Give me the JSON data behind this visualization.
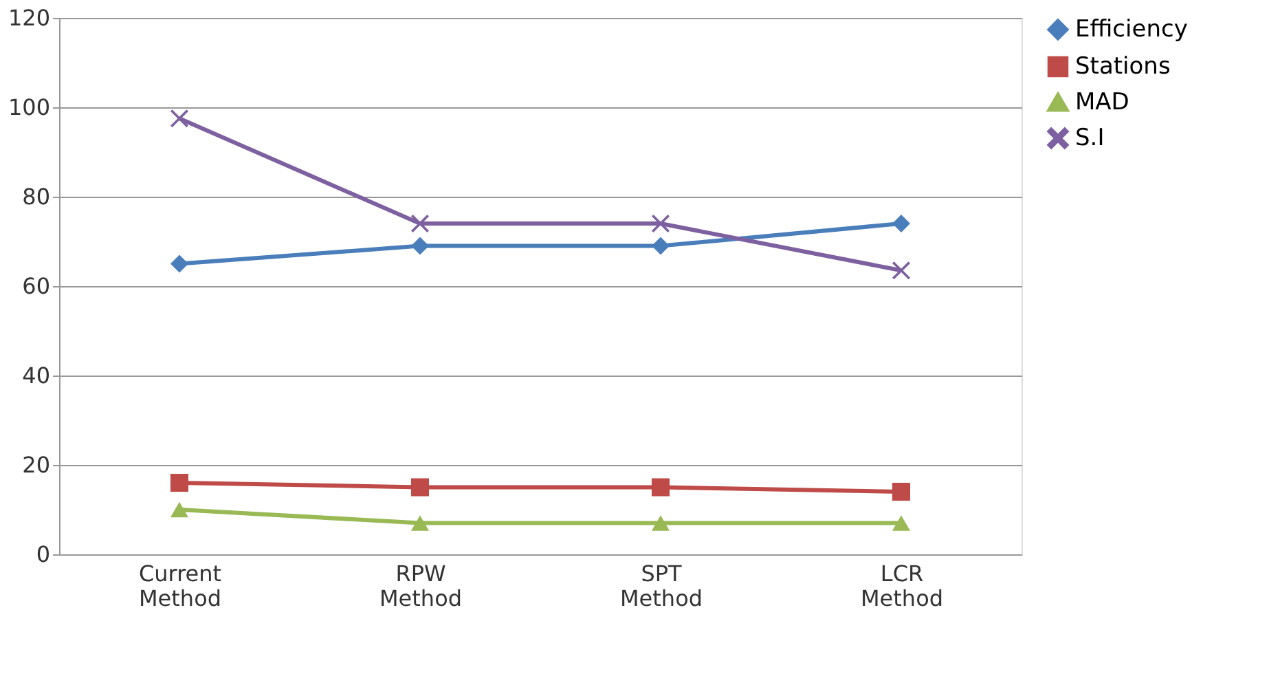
{
  "chart_data": {
    "type": "line",
    "categories": [
      "Current Method",
      "RPW Method",
      "SPT Method",
      "LCR Method"
    ],
    "series": [
      {
        "name": "Efficiency",
        "color": "#4a7ebb",
        "marker": "diamond",
        "values": [
          65,
          69,
          69,
          74
        ]
      },
      {
        "name": "Stations",
        "color": "#be4b48",
        "marker": "square",
        "values": [
          16,
          15,
          15,
          14
        ]
      },
      {
        "name": "MAD",
        "color": "#98b954",
        "marker": "triangle",
        "values": [
          10,
          7,
          7,
          7
        ]
      },
      {
        "name": "S.I",
        "color": "#7d60a0",
        "marker": "cross",
        "values": [
          97.5,
          74,
          74,
          63.5
        ]
      }
    ],
    "ylim": [
      0,
      120
    ],
    "yticks": [
      0,
      20,
      40,
      60,
      80,
      100,
      120
    ],
    "grid": "y",
    "legend": "right",
    "line_style": "solid"
  }
}
